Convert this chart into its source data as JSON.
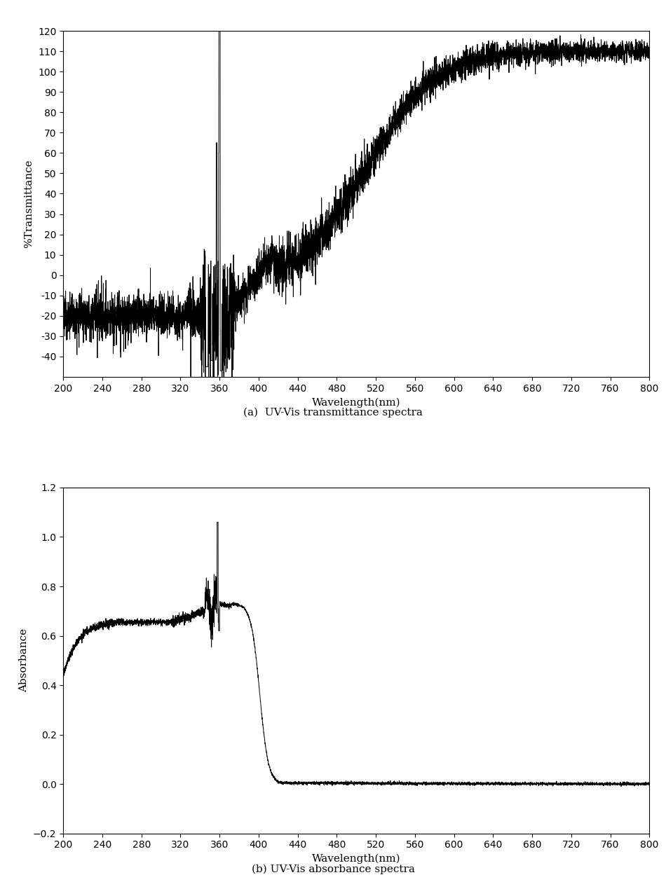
{
  "fig_width": 9.5,
  "fig_height": 12.59,
  "dpi": 100,
  "background_color": "#ffffff",
  "line_color": "#000000",
  "line_width": 0.7,
  "top_plot": {
    "xlabel": "Wavelength(nm)",
    "ylabel": "%Transmittance",
    "caption": "(a)  UV-Vis transmittance spectra",
    "xlim": [
      200,
      800
    ],
    "ylim": [
      -50,
      120
    ],
    "xticks": [
      200,
      240,
      280,
      320,
      360,
      400,
      440,
      480,
      520,
      560,
      600,
      640,
      680,
      720,
      760,
      800
    ],
    "yticks": [
      -40,
      -30,
      -20,
      -10,
      0,
      10,
      20,
      30,
      40,
      50,
      60,
      70,
      80,
      90,
      100,
      110,
      120
    ]
  },
  "bottom_plot": {
    "xlabel": "Wavelength(nm)",
    "ylabel": "Absorbance",
    "caption": "(b) UV-Vis absorbance spectra",
    "xlim": [
      200,
      800
    ],
    "ylim": [
      -0.2,
      1.2
    ],
    "xticks": [
      200,
      240,
      280,
      320,
      360,
      400,
      440,
      480,
      520,
      560,
      600,
      640,
      680,
      720,
      760,
      800
    ],
    "yticks": [
      -0.2,
      0.0,
      0.2,
      0.4,
      0.6,
      0.8,
      1.0,
      1.2
    ]
  }
}
